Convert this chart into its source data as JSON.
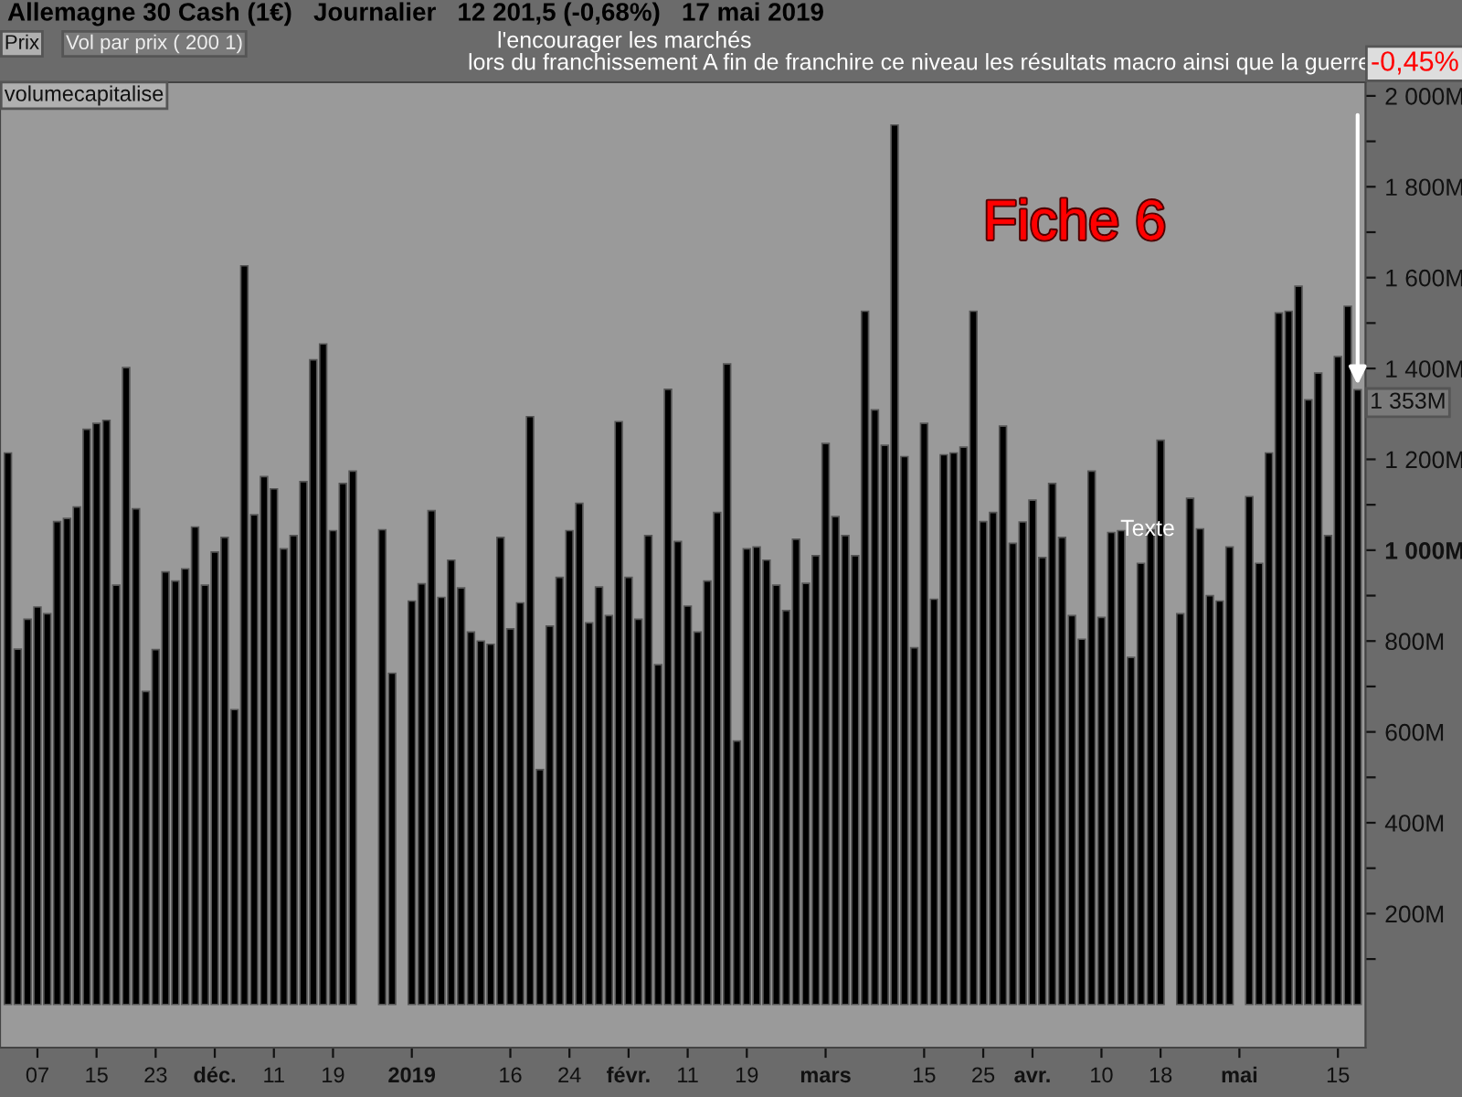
{
  "chart_data": {
    "type": "bar",
    "title": "Allemagne 30 Cash (1€)   Journalier   12 201,5 (-0,68%)   17 mai 2019",
    "categories": [
      null,
      null,
      null,
      "07",
      null,
      null,
      null,
      null,
      null,
      "15",
      null,
      null,
      null,
      null,
      null,
      "23",
      null,
      null,
      null,
      null,
      null,
      "déc.",
      null,
      null,
      null,
      null,
      null,
      "11",
      null,
      null,
      null,
      null,
      null,
      "19",
      null,
      null,
      null,
      null,
      null,
      null,
      null,
      "2019",
      null,
      null,
      null,
      null,
      null,
      null,
      null,
      null,
      null,
      "16",
      null,
      null,
      null,
      null,
      null,
      "24",
      null,
      null,
      null,
      null,
      null,
      "févr.",
      null,
      null,
      null,
      null,
      null,
      "11",
      null,
      null,
      null,
      null,
      null,
      "19",
      null,
      null,
      null,
      null,
      null,
      null,
      null,
      "mars",
      null,
      null,
      null,
      null,
      null,
      null,
      null,
      null,
      null,
      "15",
      null,
      null,
      null,
      null,
      null,
      "25",
      null,
      null,
      null,
      null,
      "avr.",
      null,
      null,
      null,
      null,
      null,
      null,
      "10",
      null,
      null,
      null,
      null,
      null,
      "18",
      null,
      null,
      null,
      null,
      null,
      null,
      null,
      "mai",
      null,
      null,
      null,
      null,
      null,
      null,
      null,
      null,
      null,
      "15",
      null,
      null
    ],
    "values": [
      1214,
      782,
      848,
      875,
      860,
      1063,
      1070,
      1095,
      1266,
      1279,
      1286,
      923,
      1402,
      1091,
      689,
      781,
      952,
      932,
      959,
      1051,
      923,
      996,
      1028,
      649,
      1626,
      1078,
      1162,
      1135,
      1003,
      1032,
      1151,
      1419,
      1454,
      1043,
      1147,
      1174,
      null,
      null,
      1045,
      729,
      null,
      888,
      926,
      1087,
      896,
      978,
      917,
      820,
      800,
      793,
      1028,
      827,
      884,
      1294,
      517,
      833,
      940,
      1043,
      1103,
      840,
      919,
      856,
      1283,
      940,
      848,
      1032,
      748,
      1354,
      1019,
      877,
      820,
      932,
      1083,
      1410,
      580,
      1003,
      1007,
      978,
      923,
      867,
      1024,
      927,
      988,
      1235,
      1074,
      1032,
      988,
      1526,
      1309,
      1231,
      1936,
      1206,
      785,
      1279,
      892,
      1210,
      1214,
      1227,
      1526,
      1063,
      1083,
      1273,
      1015,
      1062,
      1110,
      984,
      1147,
      1028,
      856,
      804,
      1174,
      852,
      1039,
      1043,
      764,
      971,
      1045,
      1242,
      null,
      860,
      1114,
      1047,
      900,
      888,
      1007,
      null,
      1118,
      971,
      1214,
      1522,
      1526,
      1581,
      1331,
      1390,
      1032,
      1426,
      1537,
      1353
    ],
    "color": "#000000",
    "ylim": [
      -95,
      2030
    ],
    "yticks": [
      {
        "value": 100,
        "label": null
      },
      {
        "value": 200,
        "label": "200M"
      },
      {
        "value": 300,
        "label": null
      },
      {
        "value": 400,
        "label": "400M"
      },
      {
        "value": 500,
        "label": null
      },
      {
        "value": 600,
        "label": "600M"
      },
      {
        "value": 700,
        "label": null
      },
      {
        "value": 800,
        "label": "800M"
      },
      {
        "value": 900,
        "label": null
      },
      {
        "value": 1000,
        "label": "1 000M"
      },
      {
        "value": 1100,
        "label": null
      },
      {
        "value": 1200,
        "label": "1 200M"
      },
      {
        "value": 1300,
        "label": null
      },
      {
        "value": 1400,
        "label": "1 400M"
      },
      {
        "value": 1500,
        "label": null
      },
      {
        "value": 1600,
        "label": "1 600M"
      },
      {
        "value": 1700,
        "label": null
      },
      {
        "value": 1800,
        "label": "1 800M"
      },
      {
        "value": 1900,
        "label": null
      },
      {
        "value": 2000,
        "label": "2 000M"
      }
    ],
    "grid": false,
    "legend": false,
    "annotations": [
      "Prix",
      "Vol par prix ( 200 1)",
      "l'encourager les marchés",
      "lors du franchissement A fin de franchire ce niveau les résultats macro ainsi que la guerre",
      "-0,45%",
      "volumecapitalise",
      "Fiche 6",
      "Texte",
      "1 353M"
    ]
  }
}
